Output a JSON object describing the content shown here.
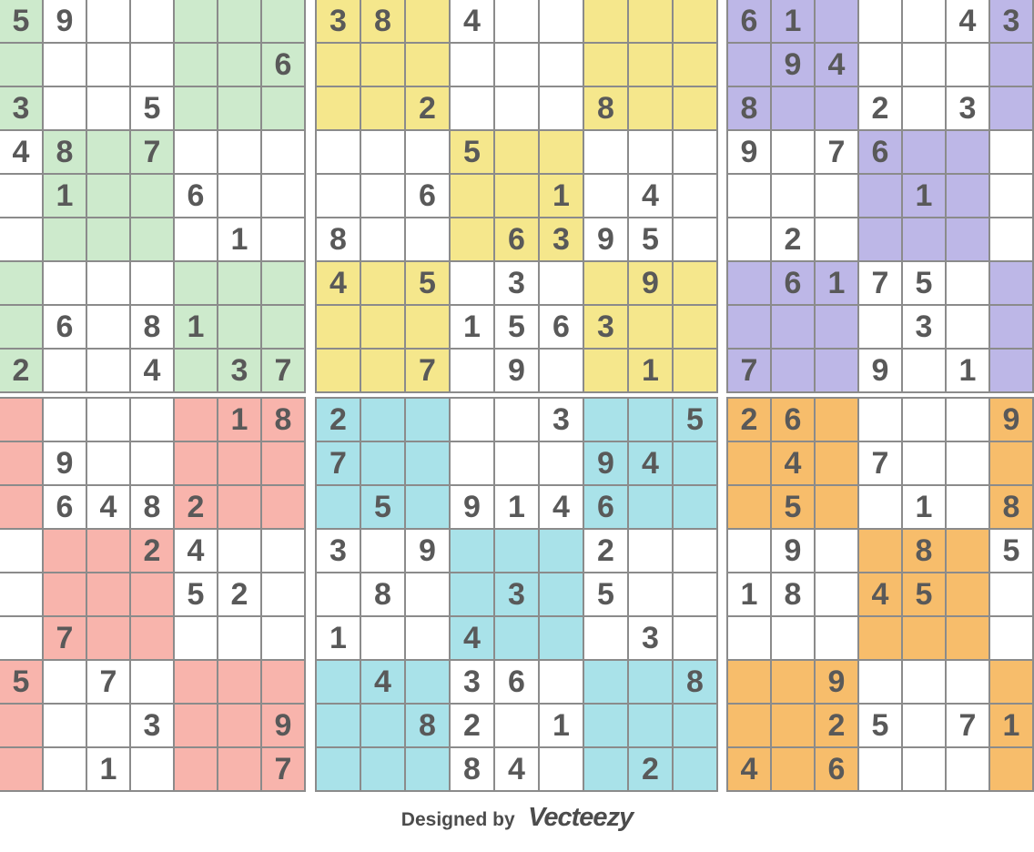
{
  "footer": {
    "designed_by": "Designed by",
    "brand": "Vecteezy"
  },
  "colors": {
    "grid_line": "#8b8b8b",
    "digit": "#595959",
    "background": "#ffffff"
  },
  "puzzles": [
    {
      "id": "green-top-left",
      "accent": "#cdeacc",
      "cols": 7,
      "rows": [
        [
          "5*",
          "9",
          "",
          "",
          "*",
          "*",
          "*"
        ],
        [
          "*",
          "",
          "",
          "",
          "*",
          "*",
          "6*"
        ],
        [
          "3*",
          "",
          "",
          "5",
          "*",
          "*",
          "*"
        ],
        [
          "4",
          "8*",
          "*",
          "7*",
          "",
          "",
          ""
        ],
        [
          "",
          "1*",
          "*",
          "*",
          "6",
          "",
          ""
        ],
        [
          "",
          "*",
          "*",
          "*",
          "",
          "1",
          ""
        ],
        [
          "*",
          "",
          "",
          "",
          "*",
          "*",
          "*"
        ],
        [
          "*",
          "6",
          "",
          "8",
          "1*",
          "*",
          "*"
        ],
        [
          "2*",
          "",
          "",
          "4",
          "*",
          "3*",
          "7*"
        ]
      ]
    },
    {
      "id": "yellow-top-middle",
      "accent": "#f5e78c",
      "cols": 9,
      "rows": [
        [
          "3*",
          "8*",
          "*",
          "4",
          "",
          "",
          "*",
          "*",
          "*"
        ],
        [
          "*",
          "*",
          "*",
          "",
          "",
          "",
          "*",
          "*",
          "*"
        ],
        [
          "*",
          "*",
          "2*",
          "",
          "",
          "",
          "8*",
          "*",
          "*"
        ],
        [
          "",
          "",
          "",
          "5*",
          "*",
          "*",
          "",
          "",
          ""
        ],
        [
          "",
          "",
          "6",
          "*",
          "*",
          "1*",
          "",
          "4",
          ""
        ],
        [
          "8",
          "",
          "",
          "*",
          "6*",
          "3*",
          "9",
          "5",
          ""
        ],
        [
          "4*",
          "*",
          "5*",
          "",
          "3",
          "",
          "*",
          "9*",
          "*"
        ],
        [
          "*",
          "*",
          "*",
          "1",
          "5",
          "6",
          "3*",
          "*",
          "*"
        ],
        [
          "*",
          "*",
          "7*",
          "",
          "9",
          "",
          "*",
          "1*",
          "*"
        ]
      ]
    },
    {
      "id": "purple-top-right",
      "accent": "#bdb7e7",
      "cols": 7,
      "rows": [
        [
          "6*",
          "1*",
          "*",
          "",
          "",
          "4",
          "3*"
        ],
        [
          "*",
          "9*",
          "4*",
          "",
          "",
          "",
          "*"
        ],
        [
          "8*",
          "*",
          "*",
          "2",
          "",
          "3",
          "*"
        ],
        [
          "9",
          "",
          "7",
          "6*",
          "*",
          "*",
          ""
        ],
        [
          "",
          "",
          "",
          "*",
          "1*",
          "*",
          ""
        ],
        [
          "",
          "2",
          "",
          "*",
          "*",
          "*",
          ""
        ],
        [
          "*",
          "6*",
          "1*",
          "7",
          "5",
          "",
          "*"
        ],
        [
          "*",
          "*",
          "*",
          "",
          "3",
          "",
          "*"
        ],
        [
          "7*",
          "*",
          "*",
          "9",
          "",
          "1",
          "*"
        ]
      ]
    },
    {
      "id": "pink-bottom-left",
      "accent": "#f8b4ac",
      "cols": 7,
      "rows": [
        [
          "*",
          "",
          "",
          "",
          "*",
          "1*",
          "8*"
        ],
        [
          "*",
          "9",
          "",
          "",
          "*",
          "*",
          "*"
        ],
        [
          "*",
          "6",
          "4",
          "8",
          "2*",
          "*",
          "*"
        ],
        [
          "",
          "*",
          "*",
          "2*",
          "4",
          "",
          ""
        ],
        [
          "",
          "*",
          "*",
          "*",
          "5",
          "2",
          ""
        ],
        [
          "",
          "7*",
          "*",
          "*",
          "",
          "",
          ""
        ],
        [
          "5*",
          "",
          "7",
          "",
          "*",
          "*",
          "*"
        ],
        [
          "*",
          "",
          "",
          "3",
          "*",
          "*",
          "9*"
        ],
        [
          "*",
          "",
          "1",
          "",
          "*",
          "*",
          "7*"
        ]
      ]
    },
    {
      "id": "cyan-bottom-middle",
      "accent": "#a9e2e9",
      "cols": 9,
      "rows": [
        [
          "2*",
          "*",
          "*",
          "",
          "",
          "3",
          "*",
          "*",
          "5*"
        ],
        [
          "7*",
          "*",
          "*",
          "",
          "",
          "",
          "9*",
          "4*",
          "*"
        ],
        [
          "*",
          "5*",
          "*",
          "9",
          "1",
          "4",
          "6*",
          "*",
          "*"
        ],
        [
          "3",
          "",
          "9",
          "*",
          "*",
          "*",
          "2",
          "",
          ""
        ],
        [
          "",
          "8",
          "",
          "*",
          "3*",
          "*",
          "5",
          "",
          ""
        ],
        [
          "1",
          "",
          "",
          "4*",
          "*",
          "*",
          "",
          "3",
          ""
        ],
        [
          "*",
          "4*",
          "*",
          "3",
          "6",
          "",
          "*",
          "*",
          "8*"
        ],
        [
          "*",
          "*",
          "8*",
          "2",
          "",
          "1",
          "*",
          "*",
          "*"
        ],
        [
          "*",
          "*",
          "*",
          "8",
          "4",
          "",
          "*",
          "2*",
          "*"
        ]
      ]
    },
    {
      "id": "orange-bottom-right",
      "accent": "#f7bd6b",
      "cols": 7,
      "rows": [
        [
          "2*",
          "6*",
          "*",
          "",
          "",
          "",
          "9*"
        ],
        [
          "*",
          "4*",
          "*",
          "7",
          "",
          "",
          "*"
        ],
        [
          "*",
          "5*",
          "*",
          "",
          "1",
          "",
          "8*"
        ],
        [
          "",
          "9",
          "",
          "*",
          "8*",
          "*",
          "5"
        ],
        [
          "1",
          "8",
          "",
          "4*",
          "5*",
          "*",
          ""
        ],
        [
          "",
          "",
          "",
          "*",
          "*",
          "*",
          ""
        ],
        [
          "*",
          "*",
          "9*",
          "",
          "",
          "",
          "*"
        ],
        [
          "*",
          "*",
          "2*",
          "5",
          "",
          "7",
          "1*"
        ],
        [
          "4*",
          "*",
          "6*",
          "",
          "",
          "",
          "*"
        ]
      ]
    }
  ]
}
